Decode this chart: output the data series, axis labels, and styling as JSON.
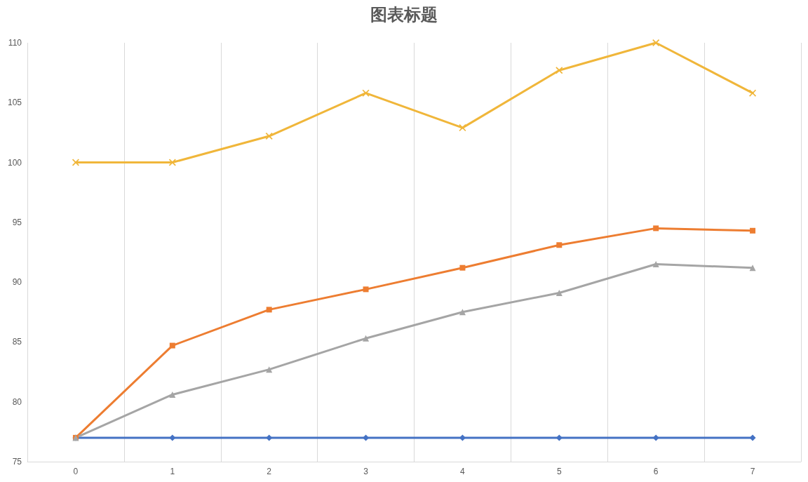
{
  "chart_data": {
    "type": "line",
    "title": "图表标题",
    "categories": [
      "0",
      "1",
      "2",
      "3",
      "4",
      "5",
      "6",
      "7"
    ],
    "series": [
      {
        "color": "#4472c4",
        "marker": "diamond",
        "values": [
          77,
          77,
          77,
          77,
          77,
          77,
          77,
          77
        ]
      },
      {
        "color": "#ed7d31",
        "marker": "square",
        "values": [
          77,
          84.7,
          87.7,
          89.4,
          91.2,
          93.1,
          94.5,
          94.3
        ]
      },
      {
        "color": "#a5a5a5",
        "marker": "triangle",
        "values": [
          77,
          80.6,
          82.7,
          85.3,
          87.5,
          89.1,
          91.5,
          91.2
        ]
      },
      {
        "color": "#f0b63a",
        "marker": "cross",
        "values": [
          100,
          100,
          102.2,
          105.8,
          102.9,
          107.7,
          110,
          105.8
        ]
      }
    ],
    "ylim": [
      75,
      110
    ],
    "yticks": [
      75,
      80,
      85,
      90,
      95,
      100,
      105,
      110
    ],
    "grid": "x"
  }
}
